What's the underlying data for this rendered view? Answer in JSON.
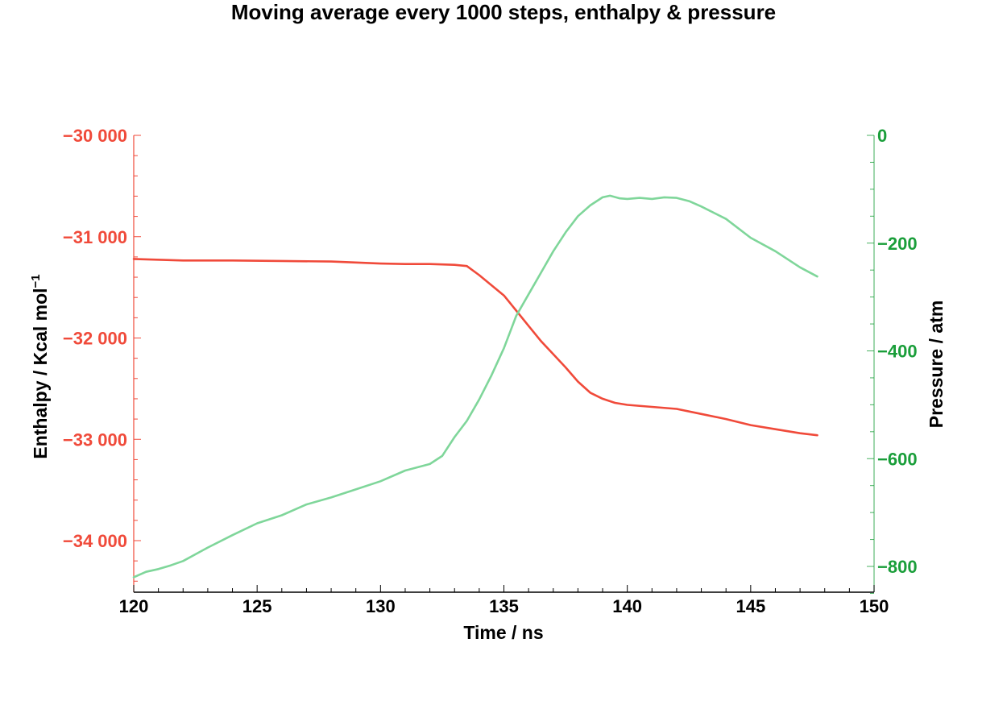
{
  "chart_data": {
    "type": "line",
    "title": "Moving average every 1000 steps, enthalpy & pressure",
    "xlabel": "Time / ns",
    "xlim": [
      120,
      150
    ],
    "x_ticks": [
      "120",
      "125",
      "130",
      "135",
      "140",
      "145",
      "150"
    ],
    "x_tick_values": [
      120,
      125,
      130,
      135,
      140,
      145,
      150
    ],
    "left_axis": {
      "label": "Enthalpy / Kcal mol",
      "label_superscript": "−1",
      "ylim": [
        -34500,
        -30000
      ],
      "ticks": [
        "−30 000",
        "−31 000",
        "−32 000",
        "−33 000",
        "−34 000"
      ],
      "tick_values": [
        -30000,
        -31000,
        -32000,
        -33000,
        -34000
      ],
      "color": "#f04a3a"
    },
    "right_axis": {
      "label": "Pressure / atm",
      "ylim": [
        -850,
        0
      ],
      "ticks": [
        "0",
        "−200",
        "−400",
        "−600",
        "−800"
      ],
      "tick_values": [
        0,
        -200,
        -400,
        -600,
        -800
      ],
      "color": "#1a9e3a"
    },
    "series": [
      {
        "axis": "left",
        "color": "#f04a3a",
        "x": [
          120,
          122,
          124,
          126,
          128,
          130,
          131,
          132,
          133,
          133.5,
          134,
          134.5,
          135,
          135.5,
          136,
          136.5,
          137,
          137.5,
          138,
          138.5,
          139,
          139.5,
          140,
          141,
          142,
          143,
          144,
          145,
          146,
          147,
          147.7
        ],
        "y": [
          -31220,
          -31235,
          -31235,
          -31240,
          -31245,
          -31265,
          -31270,
          -31270,
          -31278,
          -31290,
          -31380,
          -31480,
          -31580,
          -31730,
          -31880,
          -32030,
          -32160,
          -32290,
          -32430,
          -32540,
          -32600,
          -32640,
          -32660,
          -32680,
          -32700,
          -32750,
          -32800,
          -32860,
          -32900,
          -32940,
          -32960
        ]
      },
      {
        "axis": "right",
        "color": "#7fd69a",
        "x": [
          120,
          120.5,
          121,
          121.5,
          122,
          123,
          124,
          125,
          126,
          127,
          128,
          129,
          130,
          131,
          132,
          132.5,
          133,
          133.5,
          134,
          134.5,
          135,
          135.5,
          136,
          136.5,
          137,
          137.5,
          138,
          138.5,
          139,
          139.3,
          139.7,
          140,
          140.5,
          141,
          141.5,
          142,
          142.5,
          143,
          144,
          145,
          146,
          147,
          147.7
        ],
        "y": [
          -820,
          -810,
          -805,
          -798,
          -790,
          -765,
          -742,
          -720,
          -705,
          -685,
          -672,
          -657,
          -642,
          -622,
          -610,
          -595,
          -560,
          -530,
          -490,
          -445,
          -395,
          -335,
          -295,
          -255,
          -215,
          -180,
          -150,
          -130,
          -115,
          -112,
          -117,
          -118,
          -116,
          -118,
          -115,
          -116,
          -122,
          -132,
          -155,
          -190,
          -215,
          -245,
          -262
        ]
      }
    ]
  }
}
